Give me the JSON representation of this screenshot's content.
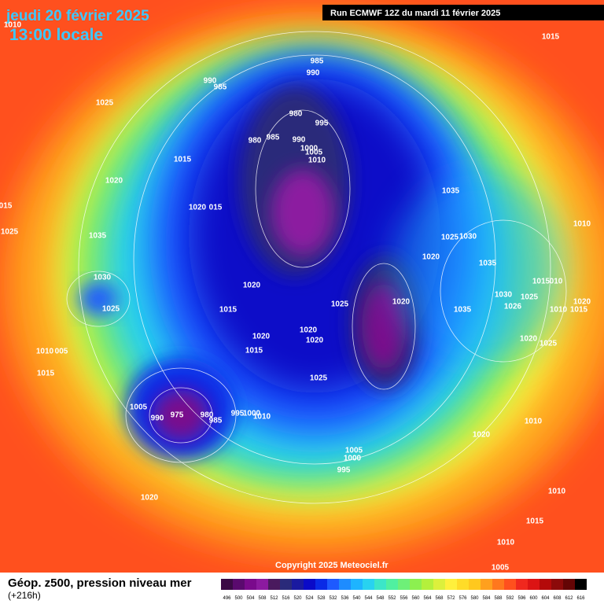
{
  "header": {
    "title": "jeudi 20 février 2025",
    "time": "13:00 locale",
    "run": "Run ECMWF 12Z du mardi 11 février 2025"
  },
  "footer": {
    "label": "Géop. z500, pression niveau mer",
    "lead": "(+216h)",
    "copyright": "Copyright 2025 Meteociel.fr"
  },
  "legend": {
    "values": [
      496,
      500,
      504,
      508,
      512,
      516,
      520,
      524,
      528,
      532,
      536,
      540,
      544,
      548,
      552,
      556,
      560,
      564,
      568,
      572,
      576,
      580,
      584,
      588,
      592,
      596,
      600,
      604,
      608,
      612,
      616
    ],
    "colors": [
      "#3b0a45",
      "#5a0a6e",
      "#7a0a8c",
      "#8c1aa0",
      "#4a1a5e",
      "#2a2a7a",
      "#1a1aa0",
      "#0a0ac8",
      "#0a2ae6",
      "#1e5aff",
      "#1e8cff",
      "#1eb4ff",
      "#28d2f0",
      "#3ce6c8",
      "#50f0a0",
      "#6ef078",
      "#8cf050",
      "#b4f03c",
      "#dcf03c",
      "#fff03c",
      "#ffdc28",
      "#ffc81e",
      "#ffa01e",
      "#ff781e",
      "#ff501e",
      "#f0281e",
      "#dc1414",
      "#b40a0a",
      "#8c0a0a",
      "#640505",
      "#000000"
    ]
  },
  "isobars": [
    "1015",
    "985",
    "990",
    "990",
    "985",
    "1025",
    "980",
    "995",
    "980",
    "985",
    "990",
    "1000",
    "1005",
    "1010",
    "1015",
    "1020",
    "1035",
    "1020",
    "015",
    "1010",
    "1025",
    "1035",
    "1025",
    "1030",
    "1020",
    "1035",
    "1030",
    "1020",
    "1015",
    "010",
    "1030",
    "1025",
    "1020",
    "1025",
    "1015",
    "1035",
    "1026",
    "1025",
    "1020",
    "1010",
    "1015",
    "1020",
    "1020",
    "1020",
    "1020",
    "1025",
    "1015",
    "1010",
    "005",
    "1015",
    "1025",
    "1005",
    "990",
    "975",
    "980",
    "985",
    "995",
    "1000",
    "1010",
    "1010",
    "1020",
    "1005",
    "1000",
    "995",
    "1020",
    "1010",
    "1015",
    "1010",
    "1005",
    "1010",
    "015"
  ]
}
